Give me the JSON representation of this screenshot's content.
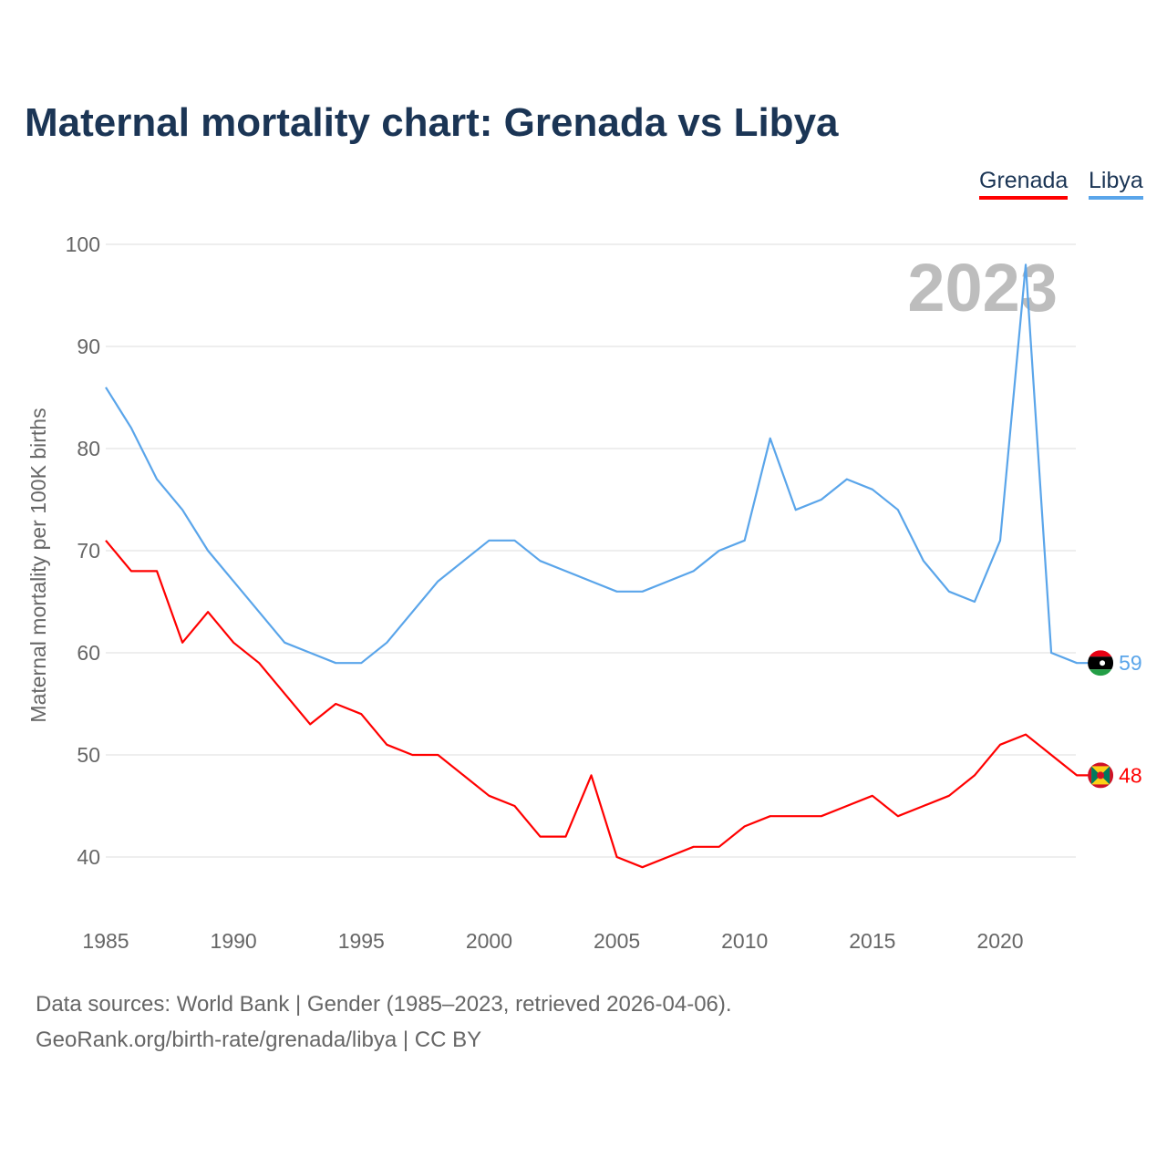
{
  "chart_data": {
    "type": "line",
    "title": "Maternal mortality chart: Grenada vs Libya",
    "ylabel": "Maternal mortality per 100K births",
    "xlabel": "",
    "ylim": [
      35,
      100
    ],
    "xlim": [
      1985,
      2023
    ],
    "yticks": [
      "40",
      "50",
      "60",
      "70",
      "80",
      "90",
      "100"
    ],
    "xticks": [
      "1985",
      "1990",
      "1995",
      "2000",
      "2005",
      "2010",
      "2015",
      "2020"
    ],
    "year_label": "2023",
    "legend": [
      "Grenada",
      "Libya"
    ],
    "legend_position": "top-right",
    "grid": true,
    "x": [
      1985,
      1986,
      1987,
      1988,
      1989,
      1990,
      1991,
      1992,
      1993,
      1994,
      1995,
      1996,
      1997,
      1998,
      1999,
      2000,
      2001,
      2002,
      2003,
      2004,
      2005,
      2006,
      2007,
      2008,
      2009,
      2010,
      2011,
      2012,
      2013,
      2014,
      2015,
      2016,
      2017,
      2018,
      2019,
      2020,
      2021,
      2022,
      2023
    ],
    "series": [
      {
        "name": "Grenada",
        "color": "#ff0000",
        "end_label": "48",
        "values": [
          71,
          68,
          68,
          61,
          64,
          61,
          59,
          56,
          53,
          55,
          54,
          51,
          50,
          50,
          48,
          46,
          45,
          42,
          42,
          48,
          40,
          39,
          40,
          41,
          41,
          43,
          44,
          44,
          44,
          45,
          46,
          44,
          45,
          46,
          48,
          51,
          52,
          50,
          48
        ]
      },
      {
        "name": "Libya",
        "color": "#5aa5ea",
        "end_label": "59",
        "values": [
          86,
          82,
          77,
          74,
          70,
          67,
          64,
          61,
          60,
          59,
          59,
          61,
          64,
          67,
          69,
          71,
          71,
          69,
          68,
          67,
          66,
          66,
          67,
          68,
          70,
          71,
          81,
          74,
          75,
          77,
          76,
          74,
          69,
          66,
          65,
          71,
          98,
          60,
          59
        ]
      }
    ]
  },
  "footer": {
    "sources": "Data sources: World Bank | Gender (1985–2023, retrieved 2026-04-06).",
    "credit": "GeoRank.org/birth-rate/grenada/libya | CC BY"
  }
}
